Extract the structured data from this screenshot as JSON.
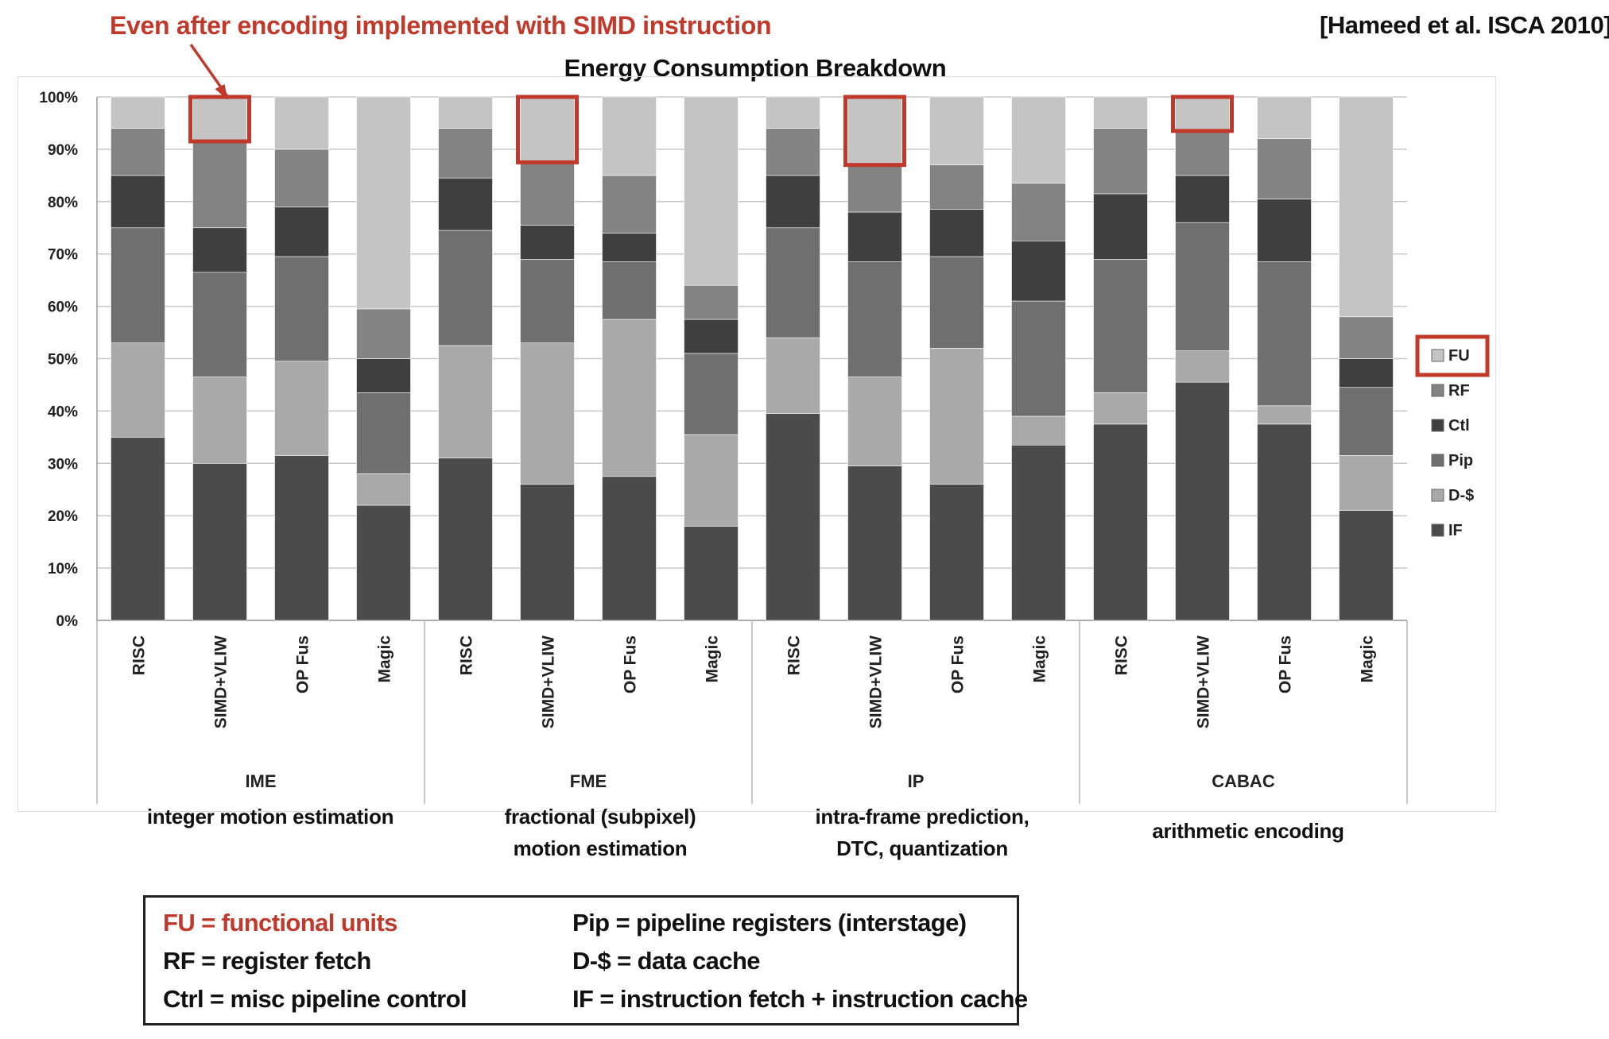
{
  "annotation": "Even after encoding implemented with SIMD instruction",
  "citation": "[Hameed et al. ISCA 2010]",
  "colors": {
    "accent": "#c0392b",
    "FU": "#c4c4c4",
    "RF": "#838383",
    "Ctl": "#3f3f3f",
    "Pip": "#6f6f6f",
    "D$": "#a9a9a9",
    "IF": "#4b4b4b"
  },
  "chart_data": {
    "type": "bar",
    "stacked": true,
    "title": "Energy Consumption Breakdown",
    "ylim": [
      0,
      100
    ],
    "yticks": [
      "0%",
      "10%",
      "20%",
      "30%",
      "40%",
      "50%",
      "60%",
      "70%",
      "80%",
      "90%",
      "100%"
    ],
    "grid": true,
    "legend_position": "right",
    "highlighted_legend": "FU",
    "groups": [
      {
        "label": "IME",
        "description": [
          "integer motion estimation"
        ]
      },
      {
        "label": "FME",
        "description": [
          "fractional (subpixel)",
          "motion estimation"
        ]
      },
      {
        "label": "IP",
        "description": [
          "intra-frame prediction,",
          "DTC, quantization"
        ]
      },
      {
        "label": "CABAC",
        "description": [
          "arithmetic encoding"
        ]
      }
    ],
    "categories": [
      "RISC",
      "SIMD+VLIW",
      "OP Fus",
      "Magic",
      "RISC",
      "SIMD+VLIW",
      "OP Fus",
      "Magic",
      "RISC",
      "SIMD+VLIW",
      "OP Fus",
      "Magic",
      "RISC",
      "SIMD+VLIW",
      "OP Fus",
      "Magic"
    ],
    "highlighted_categories": [
      1,
      5,
      9,
      13
    ],
    "series": [
      {
        "name": "IF",
        "values": [
          35,
          30,
          31.5,
          22,
          31,
          26,
          27.5,
          18,
          39.5,
          29.5,
          26,
          33.5,
          37.5,
          45.5,
          37.5,
          21
        ]
      },
      {
        "name": "D-$",
        "values": [
          18,
          16.5,
          18,
          6,
          21.5,
          27,
          30,
          17.5,
          14.5,
          17,
          26,
          5.5,
          6,
          6,
          3.5,
          10.5
        ]
      },
      {
        "name": "Pip",
        "values": [
          22,
          20,
          20,
          15.5,
          22,
          16,
          11,
          15.5,
          21,
          22,
          17.5,
          22,
          25.5,
          24.5,
          27.5,
          13
        ]
      },
      {
        "name": "Ctl",
        "values": [
          10,
          8.5,
          9.5,
          6.5,
          10,
          6.5,
          5.5,
          6.5,
          10,
          9.5,
          9,
          11.5,
          12.5,
          9,
          12,
          5.5
        ]
      },
      {
        "name": "RF",
        "values": [
          9,
          16.5,
          11,
          9.5,
          9.5,
          12,
          11,
          6.5,
          9,
          9,
          8.5,
          11,
          12.5,
          8.5,
          11.5,
          8
        ]
      },
      {
        "name": "FU",
        "values": [
          6,
          8.5,
          10,
          40.5,
          6,
          12.5,
          15,
          36,
          6,
          13,
          13,
          16.5,
          6,
          6.5,
          8,
          42
        ]
      }
    ]
  },
  "glossary": {
    "left": [
      "FU = functional units",
      "RF = register fetch",
      "Ctrl = misc pipeline control"
    ],
    "right": [
      "Pip = pipeline registers (interstage)",
      "D-$ = data cache",
      "IF = instruction fetch + instruction cache"
    ]
  }
}
